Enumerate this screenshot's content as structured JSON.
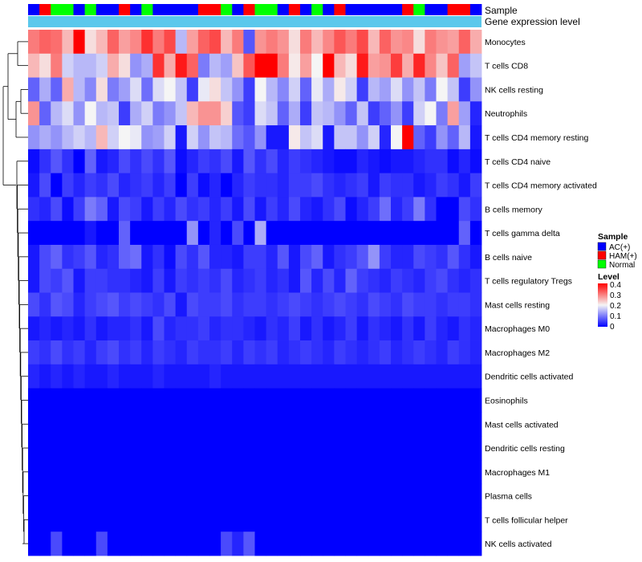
{
  "chart_data": {
    "type": "heatmap",
    "title": "",
    "annotation_tracks": [
      "Sample",
      "Gene expression level"
    ],
    "sample_groups": {
      "labels": [
        "AC(+)",
        "HAM(+)",
        "Normal"
      ],
      "colors": [
        "#0000ff",
        "#ff0000",
        "#00ff00"
      ]
    },
    "sample_assignment": [
      0,
      1,
      2,
      2,
      0,
      2,
      0,
      0,
      1,
      0,
      2,
      0,
      0,
      0,
      0,
      1,
      1,
      2,
      0,
      1,
      2,
      2,
      0,
      1,
      0,
      2,
      0,
      1,
      0,
      0,
      0,
      0,
      0,
      1,
      2,
      0,
      0,
      1,
      1,
      0
    ],
    "gene_expression_track_color": "#5bc8ec",
    "rows": [
      "Monocytes",
      "T cells CD8",
      "NK cells resting",
      "Neutrophils",
      "T cells CD4 memory resting",
      "T cells CD4 naive",
      "T cells CD4 memory activated",
      "B cells memory",
      "T cells gamma delta",
      "B cells naive",
      "T cells regulatory  Tregs",
      "Mast cells resting",
      "Macrophages M0",
      "Macrophages M2",
      "Dendritic cells activated",
      "Eosinophils",
      "Mast cells activated",
      "Dendritic cells resting",
      "Macrophages M1",
      "Plasma cells",
      "T cells follicular helper",
      "NK cells activated"
    ],
    "values": [
      [
        0.3,
        0.32,
        0.31,
        0.25,
        0.4,
        0.22,
        0.25,
        0.32,
        0.27,
        0.29,
        0.36,
        0.3,
        0.34,
        0.15,
        0.27,
        0.32,
        0.34,
        0.25,
        0.3,
        0.07,
        0.28,
        0.3,
        0.28,
        0.22,
        0.3,
        0.25,
        0.29,
        0.33,
        0.3,
        0.34,
        0.25,
        0.32,
        0.28,
        0.29,
        0.22,
        0.3,
        0.28,
        0.27,
        0.32,
        0.26
      ],
      [
        0.25,
        0.22,
        0.3,
        0.17,
        0.15,
        0.15,
        0.17,
        0.26,
        0.22,
        0.12,
        0.14,
        0.36,
        0.26,
        0.38,
        0.32,
        0.1,
        0.15,
        0.13,
        0.24,
        0.33,
        0.4,
        0.4,
        0.3,
        0.21,
        0.27,
        0.2,
        0.4,
        0.25,
        0.22,
        0.38,
        0.27,
        0.28,
        0.35,
        0.26,
        0.37,
        0.29,
        0.24,
        0.32,
        0.13,
        0.16
      ],
      [
        0.08,
        0.14,
        0.08,
        0.26,
        0.15,
        0.11,
        0.22,
        0.1,
        0.13,
        0.18,
        0.09,
        0.18,
        0.2,
        0.16,
        0.05,
        0.19,
        0.22,
        0.16,
        0.12,
        0.05,
        0.2,
        0.15,
        0.11,
        0.17,
        0.08,
        0.19,
        0.14,
        0.21,
        0.17,
        0.05,
        0.15,
        0.13,
        0.18,
        0.12,
        0.16,
        0.1,
        0.2,
        0.16,
        0.05,
        0.12
      ],
      [
        0.28,
        0.08,
        0.15,
        0.18,
        0.12,
        0.2,
        0.15,
        0.16,
        0.05,
        0.14,
        0.17,
        0.1,
        0.12,
        0.16,
        0.25,
        0.28,
        0.28,
        0.23,
        0.07,
        0.05,
        0.18,
        0.16,
        0.08,
        0.14,
        0.05,
        0.16,
        0.15,
        0.12,
        0.08,
        0.16,
        0.05,
        0.08,
        0.12,
        0.05,
        0.17,
        0.2,
        0.1,
        0.27,
        0.13,
        0.03
      ],
      [
        0.12,
        0.14,
        0.12,
        0.15,
        0.17,
        0.15,
        0.25,
        0.17,
        0.2,
        0.19,
        0.12,
        0.13,
        0.17,
        0.02,
        0.17,
        0.12,
        0.16,
        0.15,
        0.09,
        0.07,
        0.12,
        0.02,
        0.02,
        0.21,
        0.16,
        0.18,
        0.02,
        0.16,
        0.16,
        0.12,
        0.17,
        0.03,
        0.2,
        0.4,
        0.08,
        0.05,
        0.12,
        0.08,
        0.15,
        0.02
      ],
      [
        0.01,
        0.04,
        0.07,
        0.04,
        0.0,
        0.08,
        0.02,
        0.03,
        0.06,
        0.04,
        0.06,
        0.04,
        0.07,
        0.01,
        0.03,
        0.05,
        0.04,
        0.06,
        0.02,
        0.07,
        0.04,
        0.06,
        0.03,
        0.05,
        0.04,
        0.03,
        0.02,
        0.01,
        0.01,
        0.03,
        0.02,
        0.01,
        0.02,
        0.02,
        0.03,
        0.04,
        0.04,
        0.01,
        0.03,
        0.01
      ],
      [
        0.02,
        0.06,
        0.0,
        0.05,
        0.03,
        0.05,
        0.04,
        0.06,
        0.03,
        0.04,
        0.05,
        0.03,
        0.05,
        0.0,
        0.05,
        0.01,
        0.03,
        0.0,
        0.03,
        0.05,
        0.04,
        0.04,
        0.03,
        0.05,
        0.05,
        0.06,
        0.04,
        0.03,
        0.04,
        0.05,
        0.02,
        0.05,
        0.04,
        0.04,
        0.02,
        0.03,
        0.05,
        0.04,
        0.02,
        0.05
      ],
      [
        0.04,
        0.03,
        0.06,
        0.01,
        0.05,
        0.1,
        0.08,
        0.02,
        0.06,
        0.05,
        0.02,
        0.05,
        0.03,
        0.06,
        0.04,
        0.05,
        0.03,
        0.05,
        0.02,
        0.06,
        0.02,
        0.05,
        0.03,
        0.06,
        0.03,
        0.02,
        0.04,
        0.06,
        0.01,
        0.03,
        0.05,
        0.09,
        0.03,
        0.05,
        0.1,
        0.04,
        0.0,
        0.0,
        0.06,
        0.04
      ],
      [
        0.0,
        0.0,
        0.0,
        0.0,
        0.0,
        0.02,
        0.0,
        0.0,
        0.08,
        0.0,
        0.0,
        0.0,
        0.0,
        0.0,
        0.12,
        0.0,
        0.03,
        0.0,
        0.06,
        0.0,
        0.14,
        0.0,
        0.0,
        0.0,
        0.0,
        0.0,
        0.0,
        0.0,
        0.0,
        0.0,
        0.0,
        0.0,
        0.0,
        0.0,
        0.0,
        0.0,
        0.0,
        0.0,
        0.08,
        0.0
      ],
      [
        0.02,
        0.06,
        0.08,
        0.04,
        0.05,
        0.07,
        0.03,
        0.04,
        0.08,
        0.09,
        0.02,
        0.04,
        0.01,
        0.06,
        0.04,
        0.07,
        0.03,
        0.03,
        0.02,
        0.05,
        0.05,
        0.03,
        0.07,
        0.02,
        0.06,
        0.08,
        0.02,
        0.04,
        0.05,
        0.07,
        0.12,
        0.05,
        0.03,
        0.03,
        0.06,
        0.05,
        0.04,
        0.07,
        0.04,
        0.02
      ],
      [
        0.02,
        0.06,
        0.05,
        0.07,
        0.02,
        0.05,
        0.05,
        0.04,
        0.04,
        0.03,
        0.02,
        0.05,
        0.02,
        0.05,
        0.04,
        0.05,
        0.04,
        0.06,
        0.03,
        0.04,
        0.05,
        0.03,
        0.04,
        0.02,
        0.07,
        0.03,
        0.06,
        0.03,
        0.08,
        0.05,
        0.04,
        0.03,
        0.05,
        0.04,
        0.03,
        0.05,
        0.06,
        0.04,
        0.03,
        0.04
      ],
      [
        0.06,
        0.04,
        0.07,
        0.06,
        0.03,
        0.05,
        0.06,
        0.07,
        0.05,
        0.06,
        0.05,
        0.04,
        0.06,
        0.02,
        0.06,
        0.05,
        0.05,
        0.06,
        0.04,
        0.05,
        0.05,
        0.04,
        0.05,
        0.06,
        0.05,
        0.04,
        0.05,
        0.06,
        0.05,
        0.04,
        0.06,
        0.05,
        0.04,
        0.06,
        0.05,
        0.05,
        0.04,
        0.05,
        0.05,
        0.04
      ],
      [
        0.02,
        0.03,
        0.02,
        0.03,
        0.02,
        0.04,
        0.02,
        0.03,
        0.03,
        0.04,
        0.02,
        0.06,
        0.03,
        0.04,
        0.04,
        0.05,
        0.03,
        0.04,
        0.04,
        0.03,
        0.02,
        0.04,
        0.03,
        0.05,
        0.02,
        0.04,
        0.02,
        0.03,
        0.05,
        0.02,
        0.04,
        0.03,
        0.02,
        0.04,
        0.02,
        0.05,
        0.03,
        0.02,
        0.04,
        0.03
      ],
      [
        0.05,
        0.04,
        0.06,
        0.04,
        0.05,
        0.03,
        0.05,
        0.06,
        0.04,
        0.05,
        0.03,
        0.05,
        0.04,
        0.03,
        0.05,
        0.04,
        0.04,
        0.05,
        0.03,
        0.05,
        0.04,
        0.05,
        0.03,
        0.04,
        0.05,
        0.04,
        0.03,
        0.05,
        0.04,
        0.03,
        0.04,
        0.05,
        0.03,
        0.04,
        0.05,
        0.04,
        0.03,
        0.05,
        0.04,
        0.03
      ],
      [
        0.03,
        0.02,
        0.03,
        0.02,
        0.03,
        0.02,
        0.02,
        0.03,
        0.02,
        0.02,
        0.02,
        0.03,
        0.02,
        0.02,
        0.02,
        0.02,
        0.03,
        0.02,
        0.02,
        0.02,
        0.02,
        0.02,
        0.02,
        0.02,
        0.02,
        0.02,
        0.02,
        0.02,
        0.02,
        0.02,
        0.02,
        0.02,
        0.02,
        0.02,
        0.02,
        0.02,
        0.02,
        0.02,
        0.02,
        0.02
      ],
      [
        0.0,
        0.0,
        0.0,
        0.0,
        0.0,
        0.0,
        0.0,
        0.0,
        0.0,
        0.0,
        0.0,
        0.0,
        0.0,
        0.0,
        0.0,
        0.0,
        0.0,
        0.0,
        0.0,
        0.0,
        0.0,
        0.0,
        0.0,
        0.0,
        0.0,
        0.0,
        0.0,
        0.0,
        0.0,
        0.0,
        0.0,
        0.0,
        0.0,
        0.0,
        0.0,
        0.0,
        0.0,
        0.0,
        0.0,
        0.0
      ],
      [
        0.0,
        0.0,
        0.0,
        0.0,
        0.0,
        0.0,
        0.0,
        0.0,
        0.0,
        0.0,
        0.0,
        0.0,
        0.0,
        0.0,
        0.0,
        0.0,
        0.0,
        0.0,
        0.0,
        0.0,
        0.0,
        0.0,
        0.0,
        0.0,
        0.0,
        0.0,
        0.0,
        0.0,
        0.0,
        0.0,
        0.0,
        0.0,
        0.0,
        0.0,
        0.0,
        0.0,
        0.0,
        0.0,
        0.0,
        0.0
      ],
      [
        0.0,
        0.0,
        0.0,
        0.0,
        0.0,
        0.0,
        0.0,
        0.0,
        0.0,
        0.0,
        0.0,
        0.0,
        0.0,
        0.0,
        0.0,
        0.0,
        0.0,
        0.0,
        0.0,
        0.0,
        0.0,
        0.0,
        0.0,
        0.0,
        0.0,
        0.0,
        0.0,
        0.0,
        0.0,
        0.0,
        0.0,
        0.0,
        0.0,
        0.0,
        0.0,
        0.0,
        0.0,
        0.0,
        0.0,
        0.0
      ],
      [
        0.0,
        0.0,
        0.0,
        0.0,
        0.0,
        0.0,
        0.0,
        0.0,
        0.0,
        0.0,
        0.0,
        0.0,
        0.0,
        0.0,
        0.0,
        0.0,
        0.0,
        0.0,
        0.0,
        0.0,
        0.0,
        0.0,
        0.0,
        0.0,
        0.0,
        0.0,
        0.0,
        0.0,
        0.0,
        0.0,
        0.0,
        0.0,
        0.0,
        0.0,
        0.0,
        0.0,
        0.0,
        0.0,
        0.0,
        0.0
      ],
      [
        0.0,
        0.0,
        0.0,
        0.0,
        0.0,
        0.0,
        0.0,
        0.0,
        0.0,
        0.0,
        0.0,
        0.0,
        0.0,
        0.0,
        0.0,
        0.0,
        0.0,
        0.0,
        0.0,
        0.0,
        0.0,
        0.0,
        0.0,
        0.0,
        0.0,
        0.0,
        0.0,
        0.0,
        0.0,
        0.0,
        0.0,
        0.0,
        0.0,
        0.0,
        0.0,
        0.0,
        0.0,
        0.0,
        0.0,
        0.0
      ],
      [
        0.0,
        0.0,
        0.0,
        0.0,
        0.0,
        0.0,
        0.0,
        0.0,
        0.0,
        0.0,
        0.0,
        0.0,
        0.0,
        0.0,
        0.0,
        0.0,
        0.0,
        0.0,
        0.0,
        0.0,
        0.0,
        0.0,
        0.0,
        0.0,
        0.0,
        0.0,
        0.0,
        0.0,
        0.0,
        0.0,
        0.0,
        0.0,
        0.0,
        0.0,
        0.0,
        0.0,
        0.0,
        0.0,
        0.0,
        0.0
      ],
      [
        0.0,
        0.0,
        0.06,
        0.0,
        0.0,
        0.0,
        0.06,
        0.0,
        0.0,
        0.0,
        0.0,
        0.0,
        0.0,
        0.0,
        0.0,
        0.0,
        0.0,
        0.06,
        0.03,
        0.07,
        0.0,
        0.0,
        0.0,
        0.0,
        0.0,
        0.0,
        0.0,
        0.0,
        0.0,
        0.0,
        0.0,
        0.0,
        0.0,
        0.0,
        0.0,
        0.0,
        0.0,
        0.0,
        0.0,
        0.0
      ]
    ],
    "color_scale": {
      "title": "Level",
      "min": 0,
      "mid": 0.2,
      "max": 0.4,
      "ticks": [
        "0.4",
        "0.3",
        "0.2",
        "0.1",
        "0"
      ],
      "low_color": "#0000ff",
      "mid_color": "#f5f5f5",
      "high_color": "#ff0000"
    },
    "legend": {
      "title": "Sample",
      "placement": "right"
    }
  }
}
